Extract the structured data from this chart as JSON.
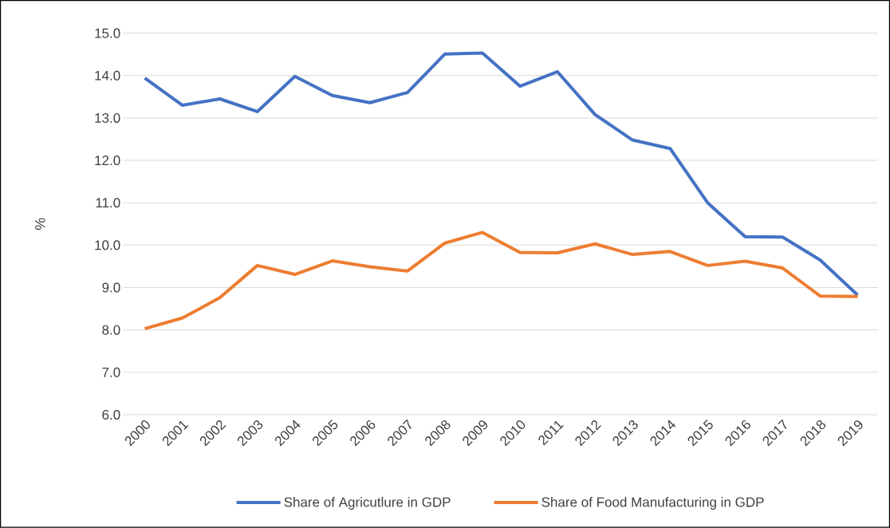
{
  "chart_data": {
    "type": "line",
    "ylabel": "%",
    "categories": [
      "2000",
      "2001",
      "2002",
      "2003",
      "2004",
      "2005",
      "2006",
      "2007",
      "2008",
      "2009",
      "2010",
      "2011",
      "2012",
      "2013",
      "2014",
      "2015",
      "2016",
      "2017",
      "2018",
      "2019"
    ],
    "series": [
      {
        "name": "Share of Agricutlure in GDP",
        "color": "#4472c4",
        "values": [
          13.94,
          13.3,
          13.45,
          13.15,
          13.98,
          13.53,
          13.36,
          13.6,
          14.51,
          14.53,
          13.75,
          14.09,
          13.08,
          12.48,
          12.28,
          11.0,
          10.2,
          10.19,
          9.65,
          8.82
        ]
      },
      {
        "name": "Share of Food Manufacturing in GDP",
        "color": "#ed7d31",
        "values": [
          8.03,
          8.28,
          8.76,
          9.52,
          9.31,
          9.63,
          9.49,
          9.39,
          10.05,
          10.3,
          9.83,
          9.82,
          10.03,
          9.78,
          9.85,
          9.52,
          9.62,
          9.46,
          8.8,
          8.79
        ]
      }
    ],
    "ylim": [
      6,
      15
    ],
    "yticks": [
      {
        "value": 6,
        "label": "6.0"
      },
      {
        "value": 7,
        "label": "7.0"
      },
      {
        "value": 8,
        "label": "8.0"
      },
      {
        "value": 9,
        "label": "9.0"
      },
      {
        "value": 10,
        "label": "10.0"
      },
      {
        "value": 11,
        "label": "11.0"
      },
      {
        "value": 12,
        "label": "12.0"
      },
      {
        "value": 13,
        "label": "13.0"
      },
      {
        "value": 14,
        "label": "14.0"
      },
      {
        "value": 15,
        "label": "15.0"
      }
    ],
    "grid": "y",
    "legend": "bottom",
    "marker": "none",
    "line_style": "solid"
  }
}
